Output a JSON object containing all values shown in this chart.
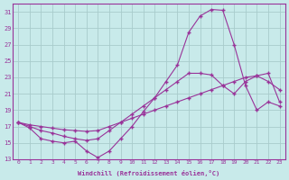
{
  "xlabel": "Windchill (Refroidissement éolien,°C)",
  "ylabel": "",
  "xlim": [
    -0.5,
    23.5
  ],
  "ylim": [
    13,
    32
  ],
  "xticks": [
    0,
    1,
    2,
    3,
    4,
    5,
    6,
    7,
    8,
    9,
    10,
    11,
    12,
    13,
    14,
    15,
    16,
    17,
    18,
    19,
    20,
    21,
    22,
    23
  ],
  "yticks": [
    13,
    15,
    17,
    19,
    21,
    23,
    25,
    27,
    29,
    31
  ],
  "background_color": "#c8eaea",
  "grid_color": "#a8cccc",
  "line_color": "#993399",
  "line1_x": [
    0,
    1,
    2,
    3,
    4,
    5,
    6,
    7,
    8,
    9,
    10,
    11,
    12,
    13,
    14,
    15,
    16,
    17,
    18,
    19,
    20,
    21,
    22,
    23
  ],
  "line1_y": [
    17.5,
    16.8,
    15.5,
    15.2,
    15.0,
    15.2,
    14.0,
    13.2,
    14.0,
    15.5,
    17.0,
    18.8,
    20.5,
    22.5,
    24.5,
    28.5,
    30.5,
    31.3,
    31.2,
    27.0,
    22.0,
    19.0,
    20.0,
    19.5
  ],
  "line2_x": [
    0,
    1,
    2,
    3,
    4,
    5,
    6,
    7,
    8,
    9,
    10,
    11,
    12,
    13,
    14,
    15,
    16,
    17,
    18,
    19,
    20,
    21,
    22,
    23
  ],
  "line2_y": [
    17.5,
    17.0,
    16.5,
    16.2,
    15.8,
    15.5,
    15.3,
    15.5,
    16.5,
    17.5,
    18.5,
    19.5,
    20.5,
    21.5,
    22.5,
    23.5,
    23.5,
    23.3,
    22.0,
    21.0,
    22.5,
    23.2,
    22.5,
    21.5
  ],
  "line3_x": [
    0,
    1,
    2,
    3,
    4,
    5,
    6,
    7,
    8,
    9,
    10,
    11,
    12,
    13,
    14,
    15,
    16,
    17,
    18,
    19,
    20,
    21,
    22,
    23
  ],
  "line3_y": [
    17.5,
    17.2,
    17.0,
    16.8,
    16.6,
    16.5,
    16.4,
    16.5,
    17.0,
    17.5,
    18.0,
    18.5,
    19.0,
    19.5,
    20.0,
    20.5,
    21.0,
    21.5,
    22.0,
    22.5,
    23.0,
    23.2,
    23.5,
    20.0
  ]
}
